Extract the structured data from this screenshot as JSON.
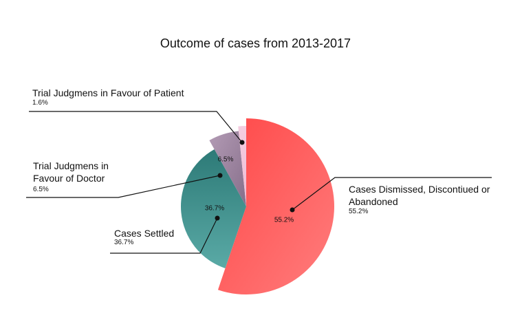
{
  "chart_data": {
    "type": "pie",
    "title": "Outcome of cases from 2013-2017",
    "categories": [
      "Cases Dismissed, Discontiued or Abandoned",
      "Cases Settled",
      "Trial Judgmens in Favour of Doctor",
      "Trial Judgmens in Favour of Patient"
    ],
    "values": [
      55.2,
      36.7,
      6.5,
      1.6
    ],
    "value_labels": [
      "55.2%",
      "36.7%",
      "6.5%",
      "1.6%"
    ],
    "colors": [
      "#ff5a5a",
      "#3f8f8c",
      "#9f86a2",
      "#f2c6dc"
    ]
  }
}
